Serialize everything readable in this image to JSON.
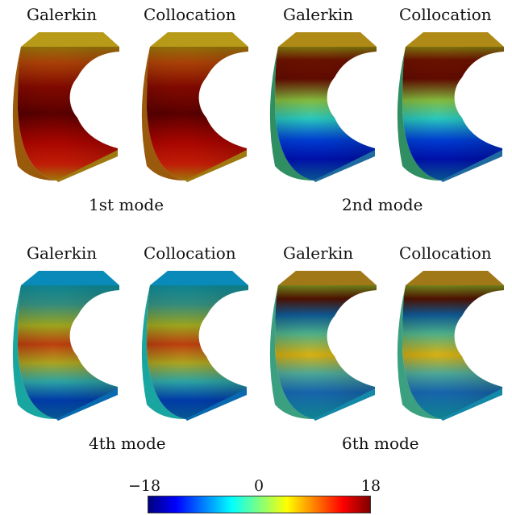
{
  "panels": [
    {
      "mode_label": "1st mode",
      "plots": [
        {
          "title": "Galerkin",
          "field": "mode1"
        },
        {
          "title": "Collocation",
          "field": "mode1"
        }
      ]
    },
    {
      "mode_label": "2nd mode",
      "plots": [
        {
          "title": "Galerkin",
          "field": "mode2"
        },
        {
          "title": "Collocation",
          "field": "mode2"
        }
      ]
    },
    {
      "mode_label": "4th mode",
      "plots": [
        {
          "title": "Galerkin",
          "field": "mode4"
        },
        {
          "title": "Collocation",
          "field": "mode4"
        }
      ]
    },
    {
      "mode_label": "6th mode",
      "plots": [
        {
          "title": "Galerkin",
          "field": "mode6"
        },
        {
          "title": "Collocation",
          "field": "mode6"
        }
      ]
    }
  ],
  "colorbar": {
    "min_label": "−18",
    "mid_label": "0",
    "max_label": "18",
    "colormap": "jet",
    "colors": [
      "#00007f",
      "#0000ff",
      "#007fff",
      "#00ffff",
      "#7fff7f",
      "#ffff00",
      "#ff7f00",
      "#ff0000",
      "#7f0000"
    ]
  }
}
